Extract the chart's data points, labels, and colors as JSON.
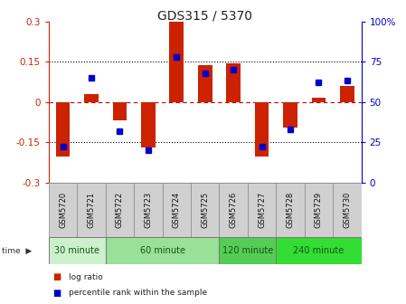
{
  "title": "GDS315 / 5370",
  "samples": [
    "GSM5720",
    "GSM5721",
    "GSM5722",
    "GSM5723",
    "GSM5724",
    "GSM5725",
    "GSM5726",
    "GSM5727",
    "GSM5728",
    "GSM5729",
    "GSM5730"
  ],
  "log_ratio": [
    -0.205,
    0.03,
    -0.07,
    -0.17,
    0.305,
    0.135,
    0.145,
    -0.205,
    -0.095,
    0.015,
    0.06
  ],
  "percentile": [
    22,
    65,
    32,
    20,
    78,
    68,
    70,
    22,
    33,
    62,
    63
  ],
  "groups": [
    {
      "label": "30 minute",
      "start": 0,
      "end": 2,
      "color": "#ccf0cc"
    },
    {
      "label": "60 minute",
      "start": 2,
      "end": 6,
      "color": "#99e099"
    },
    {
      "label": "120 minute",
      "start": 6,
      "end": 8,
      "color": "#55cc55"
    },
    {
      "label": "240 minute",
      "start": 8,
      "end": 11,
      "color": "#33dd33"
    }
  ],
  "ylim": [
    -0.3,
    0.3
  ],
  "yticks": [
    -0.3,
    -0.15,
    0,
    0.15,
    0.3
  ],
  "ytick_labels": [
    "-0.3",
    "-0.15",
    "0",
    "0.15",
    "0.3"
  ],
  "right_yticks": [
    0,
    25,
    50,
    75,
    100
  ],
  "right_ytick_labels": [
    "0",
    "25",
    "50",
    "75",
    "100%"
  ],
  "bar_color": "#cc2200",
  "dot_color": "#0000cc",
  "hline_color": "#cc0000",
  "bg_color": "#ffffff",
  "legend_log_ratio": "log ratio",
  "legend_percentile": "percentile rank within the sample",
  "bar_width": 0.5
}
